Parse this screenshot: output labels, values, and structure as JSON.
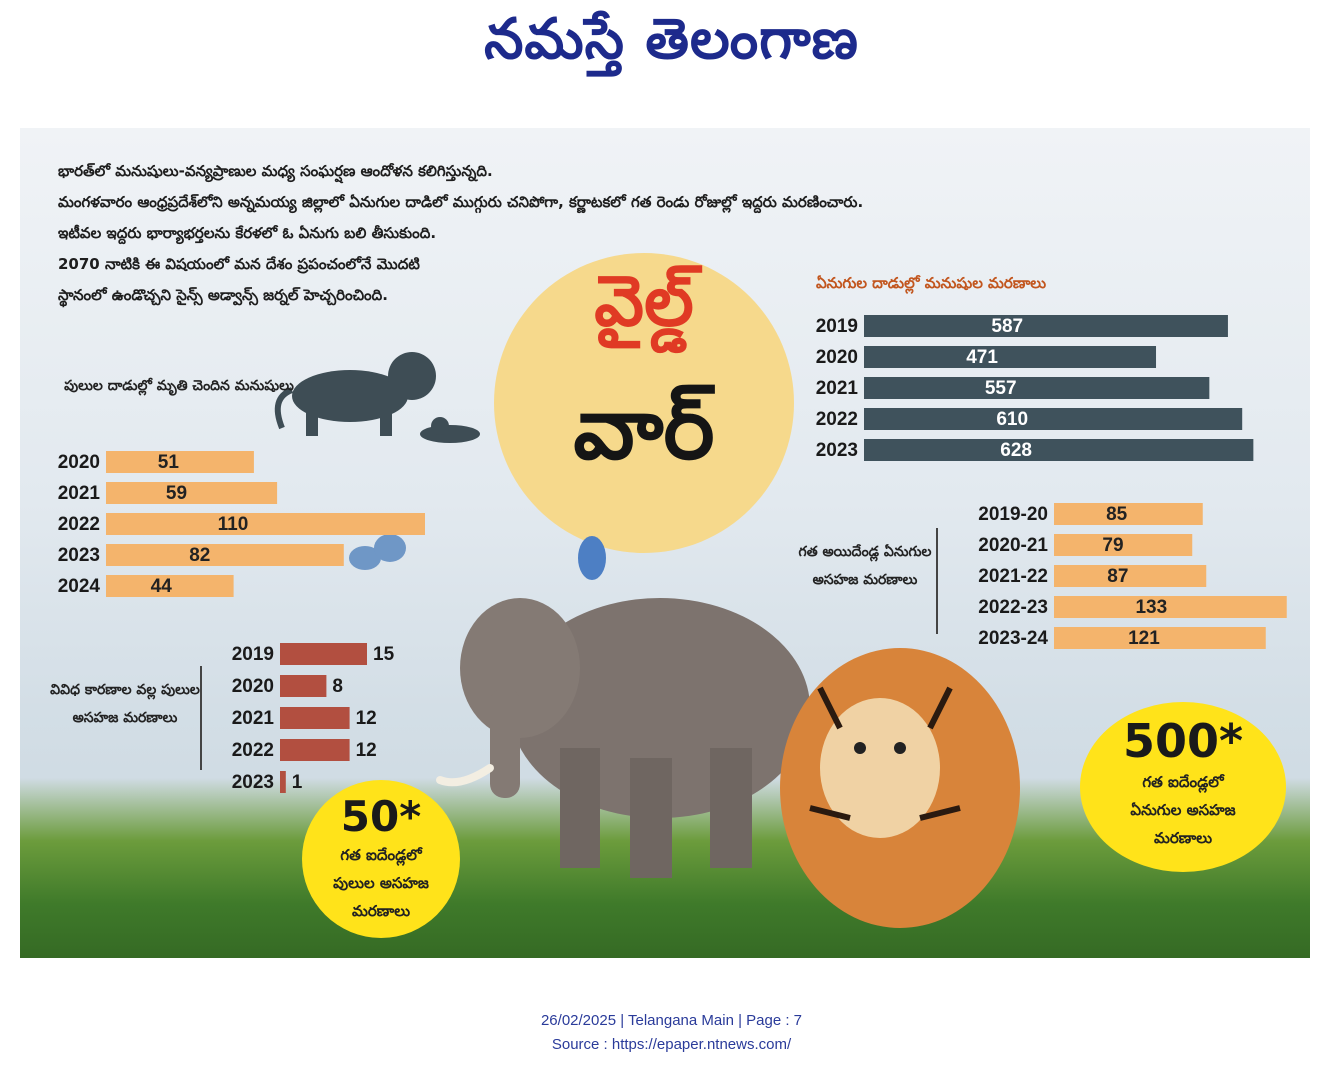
{
  "masthead": "నమస్తే తెలంగాణ",
  "intro": [
    "భారత్‌లో మనుషులు-వన్యప్రాణుల మధ్య సంఘర్షణ ఆందోళన కలిగిస్తున్నది.",
    "మంగళవారం ఆంధ్రప్రదేశ్‌లోని అన్నమయ్య జిల్లాలో ఏనుగుల దాడిలో ముగ్గురు చనిపోగా, కర్ణాటకలో గత రెండు రోజుల్లో ఇద్దరు మరణించారు.",
    "ఇటీవల ఇద్దరు భార్యాభర్తలను కేరళలో ఓ ఏనుగు బలి తీసుకుంది.",
    "2070 నాటికి ఈ విషయంలో మన దేశం ప్రపంచంలోనే మొదటి",
    "స్థానంలో ఉండొచ్చని సైన్స్ అడ్వాన్స్ జర్నల్ హెచ్చరించింది."
  ],
  "headline": {
    "line1": "వైల్డ్",
    "line2": "వార్"
  },
  "colors": {
    "orange": "#f4b46c",
    "slate": "#3f525c",
    "brick": "#b24f40",
    "yellow": "#ffe31a",
    "title": "#e03a24"
  },
  "chart_data": [
    {
      "type": "bar",
      "title": "పులుల దాడుల్లో మృతి చెందిన మనుషులు",
      "categories": [
        "2020",
        "2021",
        "2022",
        "2023",
        "2024"
      ],
      "values": [
        51,
        59,
        110,
        82,
        44
      ]
    },
    {
      "type": "bar",
      "title": "వివిధ కారణాల వల్ల పులుల అసహజ మరణాలు",
      "categories": [
        "2019",
        "2020",
        "2021",
        "2022",
        "2023"
      ],
      "values": [
        15,
        8,
        12,
        12,
        1
      ]
    },
    {
      "type": "bar",
      "title": "ఏనుగుల దాడుల్లో మనుషుల మరణాలు",
      "categories": [
        "2019",
        "2020",
        "2021",
        "2022",
        "2023"
      ],
      "values": [
        587,
        471,
        557,
        610,
        628
      ]
    },
    {
      "type": "bar",
      "title": "గత అయిదేండ్ల ఏనుగుల అసహజ మరణాలు",
      "categories": [
        "2019-20",
        "2020-21",
        "2021-22",
        "2022-23",
        "2023-24"
      ],
      "values": [
        85,
        79,
        87,
        133,
        121
      ]
    }
  ],
  "callouts": {
    "tiger": {
      "value": "50*",
      "lines": [
        "గత ఐదేండ్లలో",
        "పులుల అసహజ",
        "మరణాలు"
      ]
    },
    "elephant": {
      "value": "500*",
      "lines": [
        "గత ఐదేండ్లలో",
        "ఏనుగుల అసహజ",
        "మరణాలు"
      ]
    }
  },
  "footer": {
    "line1": "26/02/2025 | Telangana Main | Page : 7",
    "line2": "Source : https://epaper.ntnews.com/"
  }
}
